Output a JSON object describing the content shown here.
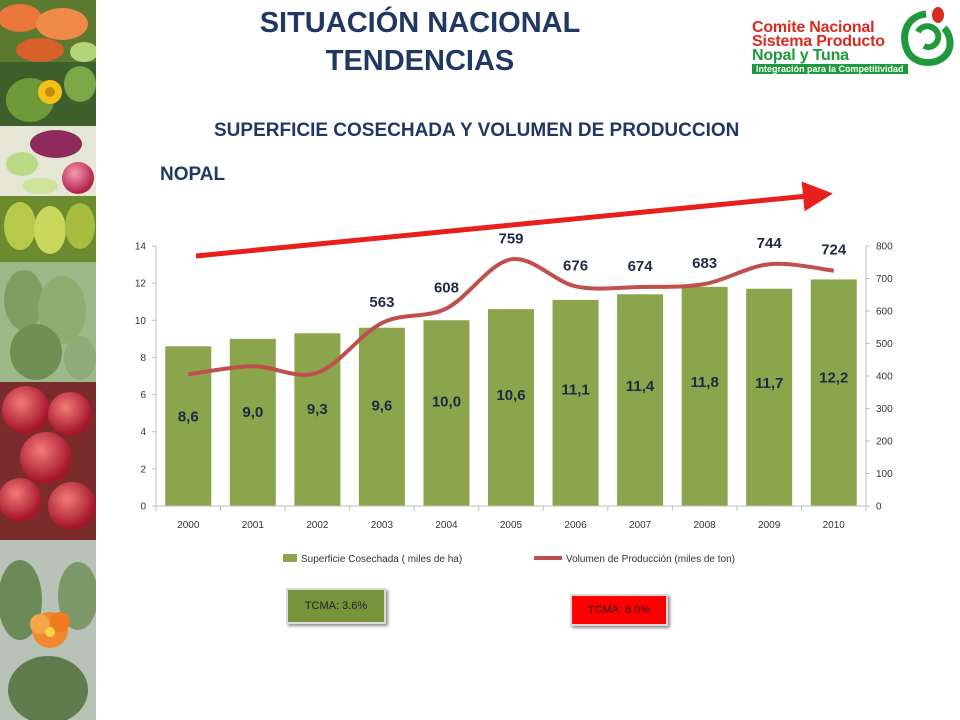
{
  "header": {
    "title_line1": "SITUACIÓN NACIONAL",
    "title_line2": "TENDENCIAS",
    "subtitle": "SUPERFICIE COSECHADA Y VOLUMEN DE PRODUCCION",
    "section": "NOPAL"
  },
  "logo": {
    "line1": "Comite Nacional",
    "line2": "Sistema Producto",
    "line3": "Nopal y Tuna",
    "tagline": "Integración para la Competitividad"
  },
  "colors": {
    "title": "#1f3864",
    "bar": "#8aa54c",
    "line": "#c0504d",
    "arrow": "#e8201c",
    "tcma_green": "#77933c",
    "tcma_red": "#ff0000"
  },
  "chart_data": {
    "type": "bar",
    "categories": [
      "2000",
      "2001",
      "2002",
      "2003",
      "2004",
      "2005",
      "2006",
      "2007",
      "2008",
      "2009",
      "2010"
    ],
    "series": [
      {
        "name": "Superficie Cosechada ( miles de ha)",
        "type": "bar",
        "axis": "left",
        "values": [
          8.6,
          9.0,
          9.3,
          9.6,
          10.0,
          10.6,
          11.1,
          11.4,
          11.8,
          11.7,
          12.2
        ],
        "labels": [
          "8,6",
          "9,0",
          "9,3",
          "9,6",
          "10,0",
          "10,6",
          "11,1",
          "11,4",
          "11,8",
          "11,7",
          "12,2"
        ]
      },
      {
        "name": "Volumen de Producción (miles de ton)",
        "type": "line",
        "axis": "right",
        "values": [
          405,
          430,
          410,
          563,
          608,
          759,
          676,
          674,
          683,
          744,
          724
        ],
        "labels": [
          "",
          "",
          "",
          "563",
          "608",
          "759",
          "676",
          "674",
          "683",
          "744",
          "724"
        ]
      }
    ],
    "y_left": {
      "range": [
        0,
        14
      ],
      "ticks": [
        "0",
        "2",
        "4",
        "6",
        "8",
        "10",
        "12",
        "14"
      ]
    },
    "y_right": {
      "range": [
        0,
        800
      ],
      "ticks": [
        "0",
        "100",
        "200",
        "300",
        "400",
        "500",
        "600",
        "700",
        "800"
      ]
    },
    "grid": false,
    "legend": "bottom",
    "trend_arrow": true
  },
  "annotations": {
    "tcma_surface": "TCMA:  3.6%",
    "tcma_volume": "TCMA:  6.0%"
  }
}
